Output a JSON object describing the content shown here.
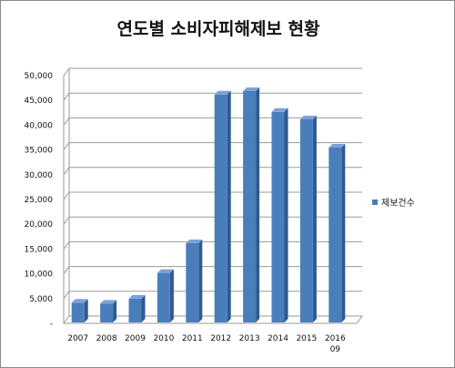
{
  "chart_data": {
    "type": "bar",
    "title": "연도별 소비자피해제보 현황",
    "categories": [
      "2007",
      "2008",
      "2009",
      "2010",
      "2011",
      "2012",
      "2013",
      "2014",
      "2015",
      "2016\n09"
    ],
    "series": [
      {
        "name": "제보건수",
        "values": [
          4000,
          3800,
          4800,
          10000,
          16000,
          46000,
          46700,
          42500,
          41000,
          35300
        ]
      }
    ],
    "ylim": [
      0,
      50000
    ],
    "y_ticks": [
      "-",
      "5,000",
      "10,000",
      "15,000",
      "20,000",
      "25,000",
      "30,000",
      "35,000",
      "40,000",
      "45,000",
      "50,000"
    ],
    "grid": true,
    "legend_position": "right",
    "colors": {
      "bar_front": "#4a7ebb",
      "bar_side": "#2f5a8f",
      "bar_top": "#7ba3d6",
      "grid": "#9a9a9a"
    }
  }
}
